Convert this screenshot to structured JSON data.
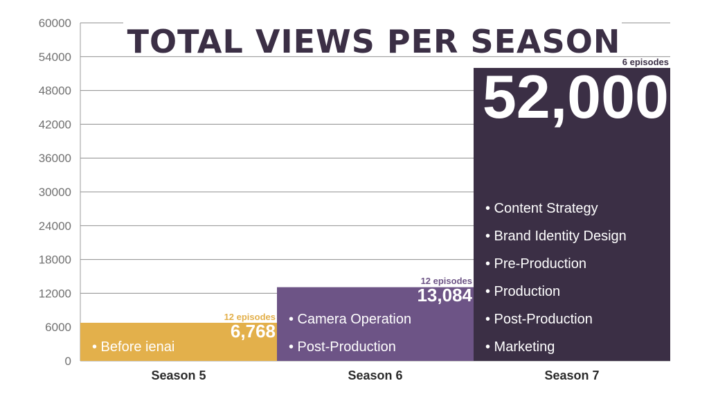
{
  "chart_data": {
    "type": "bar",
    "title": "TOTAL VIEWS PER SEASON",
    "xlabel": "",
    "ylabel": "",
    "ylim": [
      0,
      60000
    ],
    "yticks": [
      0,
      6000,
      12000,
      18000,
      24000,
      30000,
      36000,
      42000,
      48000,
      54000,
      60000
    ],
    "grid": true,
    "categories": [
      "Season 5",
      "Season 6",
      "Season 7"
    ],
    "values": [
      6768,
      13084,
      52000
    ],
    "value_labels": [
      "6,768",
      "13,084",
      "52,000"
    ],
    "episode_labels": [
      "12 episodes",
      "12 episodes",
      "6 episodes"
    ],
    "bar_colors": [
      "#e3b04b",
      "#6d5486",
      "#3b2f45"
    ],
    "bar_items": [
      [
        "Before ienai"
      ],
      [
        "Camera Operation",
        "Post-Production"
      ],
      [
        "Content Strategy",
        "Brand Identity Design",
        "Pre-Production",
        "Production",
        "Post-Production",
        "Marketing"
      ]
    ]
  }
}
